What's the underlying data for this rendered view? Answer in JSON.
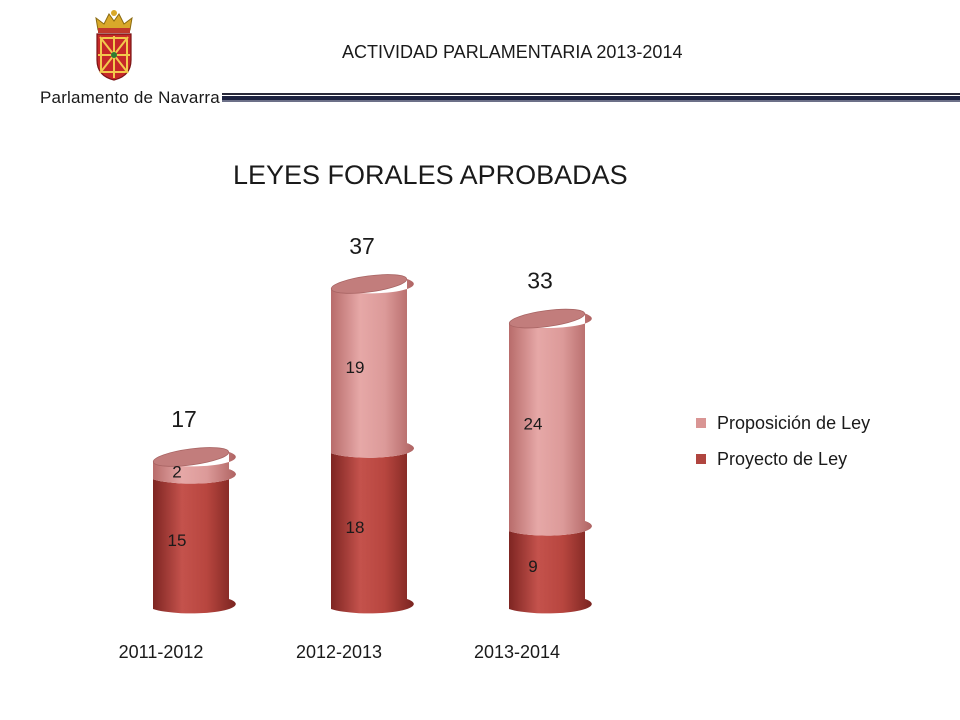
{
  "header": {
    "logo_text": "Parlamento de Navarra",
    "title": "ACTIVIDAD PARLAMENTARIA 2013-2014"
  },
  "chart_data": {
    "type": "bar",
    "title": "LEYES FORALES APROBADAS",
    "categories": [
      "2011-2012",
      "2012-2013",
      "2013-2014"
    ],
    "series": [
      {
        "name": "Proyecto de Ley",
        "values": [
          15,
          18,
          9
        ],
        "color": "#b0453f"
      },
      {
        "name": "Proposición de Ley",
        "values": [
          2,
          19,
          24
        ],
        "color": "#d99594"
      }
    ],
    "totals": [
      17,
      37,
      33
    ],
    "stacked": true,
    "style": "3d-cylinder",
    "legend": "right",
    "grid": false
  }
}
